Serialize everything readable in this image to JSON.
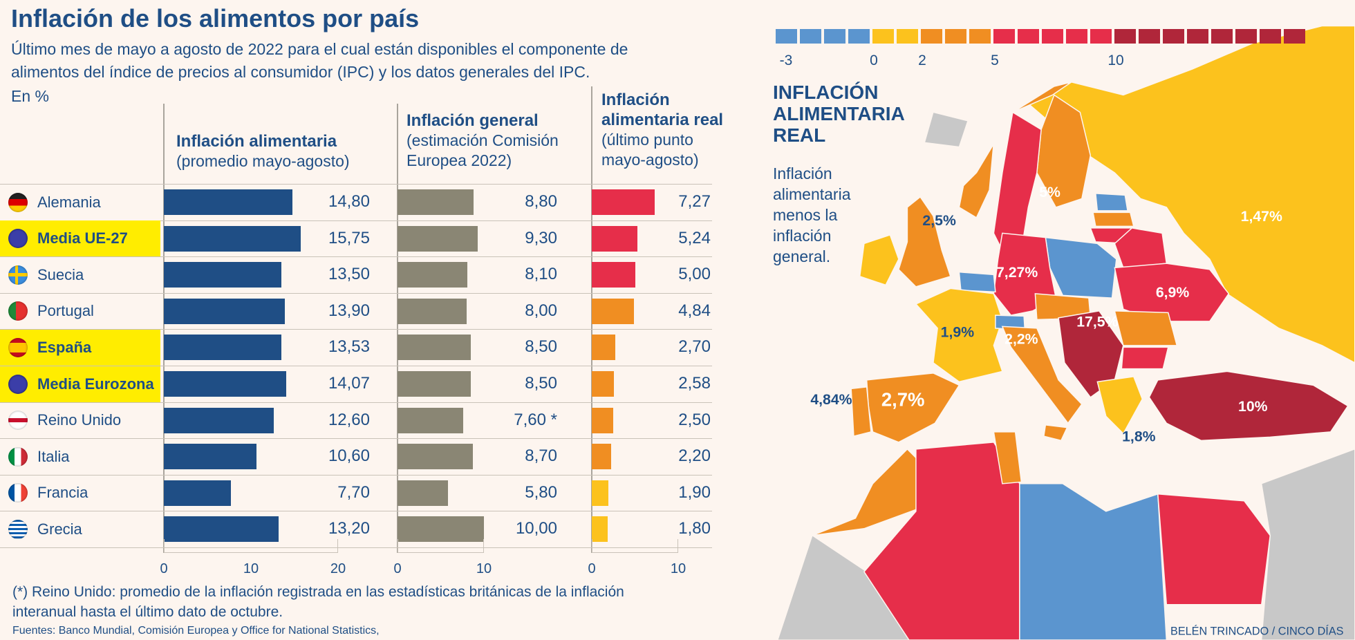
{
  "title": "Inflación de los alimentos por país",
  "subtitle": [
    "Último mes de mayo a agosto de 2022 para el cual están disponibles el componente de",
    "alimentos del índice de precios al consumidor (IPC) y los datos generales del IPC.",
    "En %"
  ],
  "headers": {
    "c1": {
      "title": "Inflación alimentaria",
      "sub": "(promedio mayo-agosto)"
    },
    "c2": {
      "title": "Inflación general",
      "sub1": "(estimación Comisión",
      "sub2": "Europea 2022)"
    },
    "c3": {
      "title1": "Inflación",
      "title2": "alimentaria real",
      "sub1": "(último punto",
      "sub2": "mayo-agosto)"
    }
  },
  "chart_data": {
    "type": "bar",
    "orientation": "horizontal",
    "categories": [
      "Alemania",
      "Media UE-27",
      "Suecia",
      "Portugal",
      "España",
      "Media Eurozona",
      "Reino Unido",
      "Italia",
      "Francia",
      "Grecia"
    ],
    "highlighted": [
      "Media UE-27",
      "España",
      "Media Eurozona"
    ],
    "series": [
      {
        "name": "Inflación alimentaria",
        "values": [
          14.8,
          15.75,
          13.5,
          13.9,
          13.53,
          14.07,
          12.6,
          10.6,
          7.7,
          13.2
        ],
        "labels": [
          "14,80",
          "15,75",
          "13,50",
          "13,90",
          "13,53",
          "14,07",
          "12,60",
          "10,60",
          "7,70",
          "13,20"
        ],
        "color": "#1f4e85",
        "xlim": [
          0,
          20
        ],
        "ticks": [
          "0",
          "10",
          "20"
        ]
      },
      {
        "name": "Inflación general",
        "values": [
          8.8,
          9.3,
          8.1,
          8.0,
          8.5,
          8.5,
          7.6,
          8.7,
          5.8,
          10.0
        ],
        "labels": [
          "8,80",
          "9,30",
          "8,10",
          "8,00",
          "8,50",
          "8,50",
          "7,60 *",
          "8,70",
          "5,80",
          "10,00"
        ],
        "color": "#8a8674",
        "xlim": [
          0,
          10
        ],
        "ticks": [
          "0",
          "10"
        ]
      },
      {
        "name": "Inflación alimentaria real",
        "values": [
          7.27,
          5.24,
          5.0,
          4.84,
          2.7,
          2.58,
          2.5,
          2.2,
          1.9,
          1.8
        ],
        "labels": [
          "7,27",
          "5,24",
          "5,00",
          "4,84",
          "2,70",
          "2,58",
          "2,50",
          "2,20",
          "1,90",
          "1,80"
        ],
        "xlim": [
          0,
          10
        ],
        "ticks": [
          "0",
          "10"
        ]
      }
    ]
  },
  "flags": [
    "de",
    "eu",
    "se",
    "pt",
    "es",
    "eu",
    "uk",
    "it",
    "fr",
    "gr"
  ],
  "footnote": [
    "(*) Reino Unido: promedio de la inflación registrada en las estadísticas británicas de la inflación",
    "interanual hasta el último dato de octubre."
  ],
  "sources": "Fuentes: Banco Mundial, Comisión Europea y Office for National Statistics,",
  "map": {
    "title": [
      "INFLACIÓN",
      "ALIMENTARIA",
      "REAL"
    ],
    "desc": [
      "Inflación",
      "alimentaria",
      "menos la",
      "inflación",
      "general."
    ],
    "legend": {
      "colors": [
        "#5b95cf",
        "#5b95cf",
        "#5b95cf",
        "#5b95cf",
        "#fcc21d",
        "#fcc21d",
        "#f08e22",
        "#f08e22",
        "#f08e22",
        "#e62e4a",
        "#e62e4a",
        "#e62e4a",
        "#e62e4a",
        "#e62e4a",
        "#b0263a",
        "#b0263a",
        "#b0263a",
        "#b0263a",
        "#b0263a",
        "#b0263a",
        "#b0263a",
        "#b0263a"
      ],
      "labels": [
        "-3",
        "0",
        "2",
        "5",
        "10"
      ]
    },
    "labels": [
      "5%",
      "2,5%",
      "1,47%",
      "7,27%",
      "6,9%",
      "17,5%",
      "1,9%",
      "2,2%",
      "2,7%",
      "4,84%",
      "10%",
      "1,8%"
    ],
    "credit": "BELÉN TRINCADO / CINCO DÍAS"
  },
  "colors": {
    "blue": "#5b95cf",
    "yellow": "#fcc21d",
    "orange": "#f08e22",
    "red": "#e62e4a",
    "darkred": "#b0263a",
    "text": "#1f4e85",
    "grey": "#c8c8c8"
  }
}
